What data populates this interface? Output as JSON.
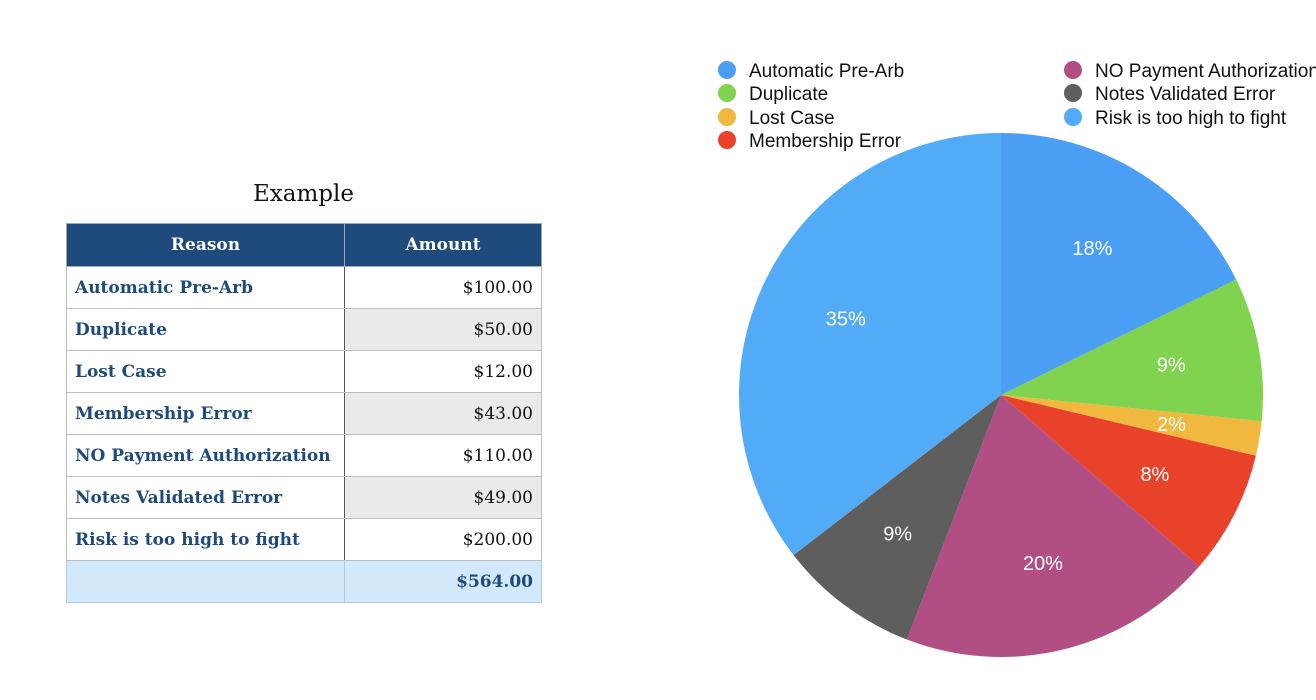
{
  "table": {
    "title": "Example",
    "headers": {
      "reason": "Reason",
      "amount": "Amount"
    },
    "rows": [
      {
        "reason": "Automatic Pre-Arb",
        "amount": "$100.00"
      },
      {
        "reason": "Duplicate",
        "amount": "$50.00"
      },
      {
        "reason": "Lost Case",
        "amount": "$12.00"
      },
      {
        "reason": "Membership Error",
        "amount": "$43.00"
      },
      {
        "reason": "NO Payment Authorization",
        "amount": "$110.00"
      },
      {
        "reason": "Notes Validated Error",
        "amount": "$49.00"
      },
      {
        "reason": "Risk is too high to fight",
        "amount": "$200.00"
      }
    ],
    "total": {
      "reason": "",
      "amount": "$564.00"
    }
  },
  "chart_data": {
    "type": "pie",
    "title": "",
    "legend_position": "top",
    "slices": [
      {
        "label": "Automatic Pre-Arb",
        "value": 100,
        "percent_label": "18%",
        "color": "#4a9ff5"
      },
      {
        "label": "Duplicate",
        "value": 50,
        "percent_label": "9%",
        "color": "#7fd34f"
      },
      {
        "label": "Lost Case",
        "value": 12,
        "percent_label": "2%",
        "color": "#f0b83f"
      },
      {
        "label": "Membership Error",
        "value": 43,
        "percent_label": "8%",
        "color": "#e9422b"
      },
      {
        "label": "NO Payment Authorization",
        "value": 110,
        "percent_label": "20%",
        "color": "#b14f84"
      },
      {
        "label": "Notes Validated Error",
        "value": 49,
        "percent_label": "9%",
        "color": "#5e5e5e"
      },
      {
        "label": "Risk is too high to fight",
        "value": 200,
        "percent_label": "35%",
        "color": "#52abf7"
      }
    ]
  }
}
